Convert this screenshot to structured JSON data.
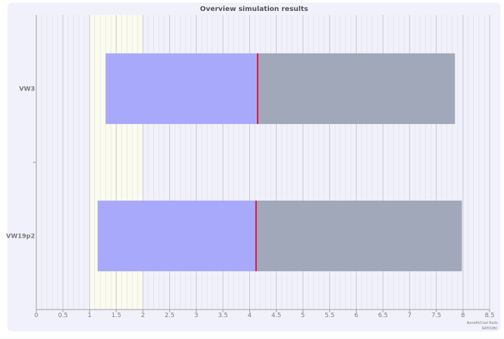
{
  "chart_data": {
    "type": "bar",
    "title": "Overview simulation results",
    "orientation": "horizontal",
    "categories": [
      "VW3",
      "VW19p2"
    ],
    "series": [
      {
        "values": [
          [
            1.3,
            4.15
          ],
          [
            1.15,
            4.12
          ]
        ]
      },
      {
        "values": [
          [
            4.15,
            7.85
          ],
          [
            4.12,
            7.98
          ]
        ]
      }
    ],
    "markers": [
      4.15,
      4.12
    ],
    "xlim": [
      0,
      8.5
    ],
    "xticks": [
      "0",
      "0.5",
      "1",
      "1.5",
      "2",
      "2.5",
      "3",
      "3.5",
      "4",
      "4.5",
      "5",
      "5.5",
      "6",
      "6.5",
      "7",
      "7.5",
      "8",
      "8.5"
    ],
    "highlight_band": [
      1,
      2
    ],
    "grid": true,
    "xlabel": "Benefit/Cost Ratio",
    "xlabel_sub": "RATIO/BC",
    "colors": {
      "plot_background": "#f1f1fb",
      "band": "#fbfbee",
      "low_range": "#a9a9fb",
      "high_range": "#a0a8b9",
      "marker": "#e0102a",
      "text": "#7a7a7a"
    }
  }
}
